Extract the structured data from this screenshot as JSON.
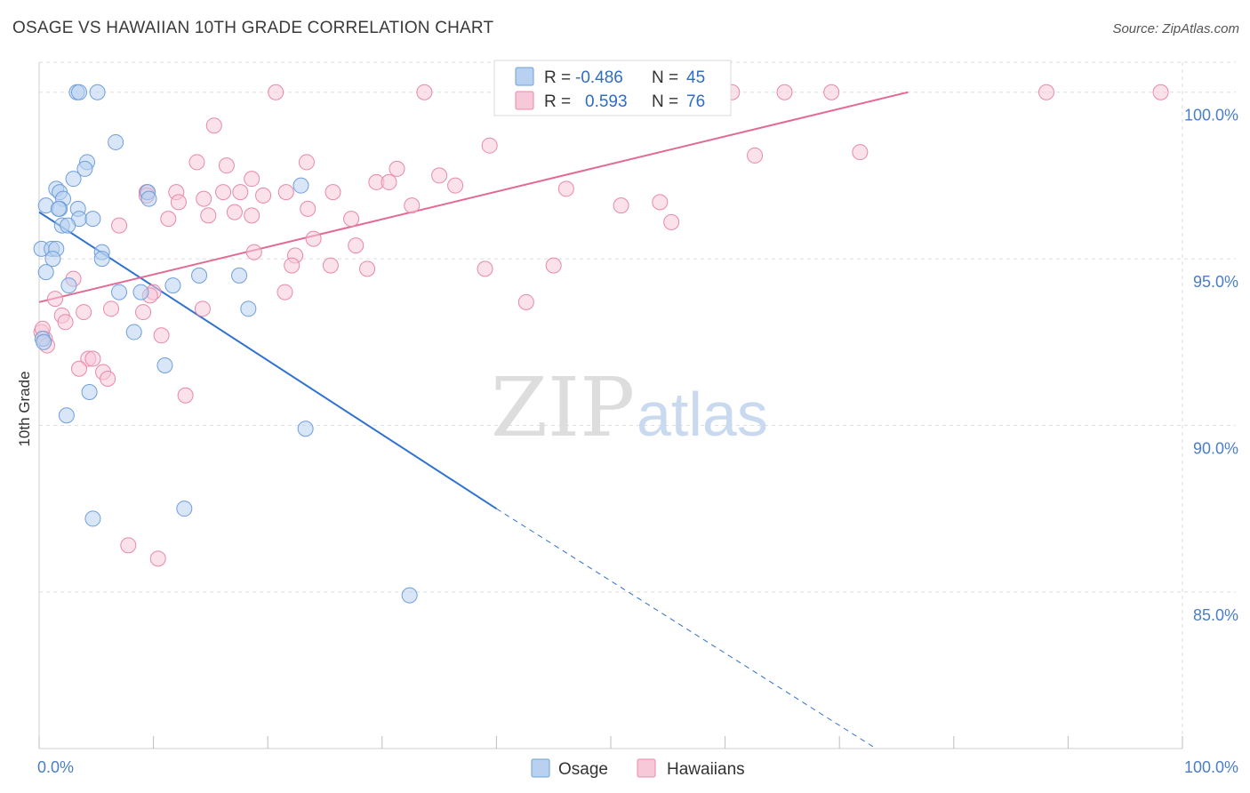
{
  "title": "OSAGE VS HAWAIIAN 10TH GRADE CORRELATION CHART",
  "source": "Source: ZipAtlas.com",
  "watermark": {
    "zip": "ZIP",
    "atlas": "atlas"
  },
  "colors": {
    "osage": "#6f9fdc",
    "osage_fill": "#b8d1f0",
    "osage_line": "#2f72d0",
    "hawaiians": "#e889a8",
    "hawaiians_fill": "#f7c9d8",
    "hawaiians_line": "#e26a93",
    "tick": "#4a7ec8",
    "grid": "#dedede"
  },
  "legend": {
    "r_label": "R =",
    "n_label": "N =",
    "osage_r": "-0.486",
    "osage_n": "45",
    "hawaiians_r": "0.593",
    "hawaiians_n": "76"
  },
  "chart_data": {
    "type": "scatter",
    "title": "OSAGE VS HAWAIIAN 10TH GRADE CORRELATION CHART",
    "xlabel": "",
    "ylabel": "10th Grade",
    "xlim": [
      0,
      100
    ],
    "ylim": [
      80.3,
      100.9
    ],
    "x_tick_labels": [
      "0.0%",
      "100.0%"
    ],
    "y_ticks": [
      85,
      90,
      95,
      100
    ],
    "y_tick_labels": [
      "85.0%",
      "90.0%",
      "95.0%",
      "100.0%"
    ],
    "grid": true,
    "legend_position": "top-center",
    "bottom_legend": [
      "Osage",
      "Hawaiians"
    ],
    "series": [
      {
        "name": "Osage",
        "r": -0.486,
        "n": 45,
        "points": [
          [
            3.3,
            100.0
          ],
          [
            3.5,
            100.0
          ],
          [
            5.1,
            100.0
          ],
          [
            6.7,
            98.5
          ],
          [
            4.2,
            97.9
          ],
          [
            4.0,
            97.7
          ],
          [
            3.0,
            97.4
          ],
          [
            1.5,
            97.1
          ],
          [
            1.8,
            97.0
          ],
          [
            9.5,
            97.0
          ],
          [
            22.9,
            97.2
          ],
          [
            2.1,
            96.8
          ],
          [
            9.6,
            96.8
          ],
          [
            0.6,
            96.6
          ],
          [
            1.8,
            96.5
          ],
          [
            3.4,
            96.5
          ],
          [
            1.7,
            96.5
          ],
          [
            3.5,
            96.2
          ],
          [
            4.7,
            96.2
          ],
          [
            2.0,
            96.0
          ],
          [
            2.5,
            96.0
          ],
          [
            0.2,
            95.3
          ],
          [
            1.1,
            95.3
          ],
          [
            1.5,
            95.3
          ],
          [
            5.5,
            95.2
          ],
          [
            1.2,
            95.0
          ],
          [
            5.5,
            95.0
          ],
          [
            0.6,
            94.6
          ],
          [
            17.5,
            94.5
          ],
          [
            11.7,
            94.2
          ],
          [
            2.6,
            94.2
          ],
          [
            7.0,
            94.0
          ],
          [
            8.9,
            94.0
          ],
          [
            14.0,
            94.5
          ],
          [
            18.3,
            93.5
          ],
          [
            8.3,
            92.8
          ],
          [
            0.3,
            92.6
          ],
          [
            11.0,
            91.8
          ],
          [
            4.4,
            91.0
          ],
          [
            2.4,
            90.3
          ],
          [
            23.3,
            89.9
          ],
          [
            12.7,
            87.5
          ],
          [
            4.7,
            87.2
          ],
          [
            32.4,
            84.9
          ],
          [
            0.4,
            92.5
          ]
        ],
        "trend": {
          "x1": 0.0,
          "y1": 96.4,
          "x2": 40.0,
          "y2": 87.5,
          "dash_to_x": 73.2,
          "dash_to_y": 80.3
        }
      },
      {
        "name": "Hawaiians",
        "r": 0.593,
        "n": 76,
        "points": [
          [
            20.7,
            100.0
          ],
          [
            33.7,
            100.0
          ],
          [
            60.6,
            100.0
          ],
          [
            65.2,
            100.0
          ],
          [
            69.3,
            100.0
          ],
          [
            88.1,
            100.0
          ],
          [
            98.1,
            100.0
          ],
          [
            15.3,
            99.0
          ],
          [
            39.4,
            98.4
          ],
          [
            62.6,
            98.1
          ],
          [
            71.8,
            98.2
          ],
          [
            13.8,
            97.9
          ],
          [
            16.4,
            97.8
          ],
          [
            23.4,
            97.9
          ],
          [
            31.3,
            97.7
          ],
          [
            35.0,
            97.5
          ],
          [
            18.6,
            97.4
          ],
          [
            29.5,
            97.3
          ],
          [
            30.6,
            97.3
          ],
          [
            36.4,
            97.2
          ],
          [
            46.1,
            97.1
          ],
          [
            9.4,
            97.0
          ],
          [
            12.0,
            97.0
          ],
          [
            16.1,
            97.0
          ],
          [
            17.6,
            97.0
          ],
          [
            21.6,
            97.0
          ],
          [
            25.7,
            97.0
          ],
          [
            14.4,
            96.8
          ],
          [
            9.4,
            96.9
          ],
          [
            19.6,
            96.9
          ],
          [
            12.2,
            96.7
          ],
          [
            50.9,
            96.6
          ],
          [
            54.3,
            96.7
          ],
          [
            23.5,
            96.5
          ],
          [
            32.6,
            96.6
          ],
          [
            17.1,
            96.4
          ],
          [
            18.6,
            96.3
          ],
          [
            14.8,
            96.3
          ],
          [
            11.3,
            96.2
          ],
          [
            27.3,
            96.2
          ],
          [
            55.3,
            96.1
          ],
          [
            7.0,
            96.0
          ],
          [
            24.0,
            95.6
          ],
          [
            27.7,
            95.4
          ],
          [
            18.8,
            95.2
          ],
          [
            22.4,
            95.1
          ],
          [
            25.5,
            94.8
          ],
          [
            22.1,
            94.8
          ],
          [
            39.0,
            94.7
          ],
          [
            28.7,
            94.7
          ],
          [
            45.0,
            94.8
          ],
          [
            3.0,
            94.4
          ],
          [
            10.0,
            94.0
          ],
          [
            9.7,
            93.9
          ],
          [
            21.5,
            94.0
          ],
          [
            1.4,
            93.8
          ],
          [
            42.6,
            93.7
          ],
          [
            14.3,
            93.5
          ],
          [
            6.3,
            93.5
          ],
          [
            9.1,
            93.4
          ],
          [
            3.9,
            93.4
          ],
          [
            2.0,
            93.3
          ],
          [
            2.3,
            93.1
          ],
          [
            0.2,
            92.8
          ],
          [
            0.5,
            92.6
          ],
          [
            10.7,
            92.7
          ],
          [
            4.3,
            92.0
          ],
          [
            4.7,
            92.0
          ],
          [
            3.5,
            91.7
          ],
          [
            5.6,
            91.6
          ],
          [
            6.0,
            91.4
          ],
          [
            12.8,
            90.9
          ],
          [
            7.8,
            86.4
          ],
          [
            10.4,
            86.0
          ],
          [
            0.3,
            92.9
          ],
          [
            0.7,
            92.4
          ]
        ],
        "trend": {
          "x1": 0.0,
          "y1": 93.7,
          "x2": 76.0,
          "y2": 100.0
        }
      }
    ]
  }
}
